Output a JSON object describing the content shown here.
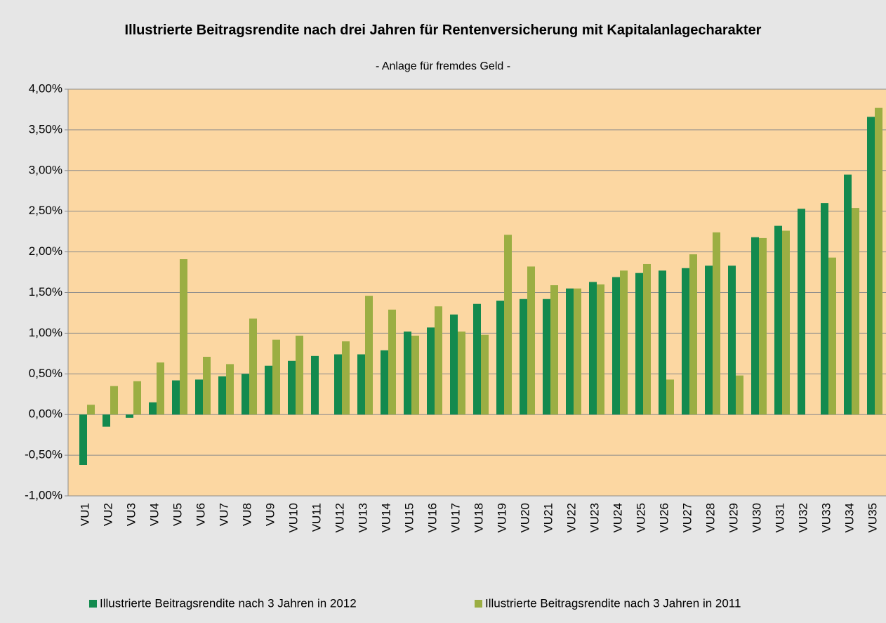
{
  "chart_data": {
    "type": "bar",
    "title": "Illustrierte Beitragsrendite nach drei Jahren für Rentenversicherung mit Kapitalanlagecharakter",
    "subtitle": "- Anlage für fremdes Geld -",
    "categories": [
      "VU1",
      "VU2",
      "VU3",
      "VU4",
      "VU5",
      "VU6",
      "VU7",
      "VU8",
      "VU9",
      "VU10",
      "VU11",
      "VU12",
      "VU13",
      "VU14",
      "VU15",
      "VU16",
      "VU17",
      "VU18",
      "VU19",
      "VU20",
      "VU21",
      "VU22",
      "VU23",
      "VU24",
      "VU25",
      "VU26",
      "VU27",
      "VU28",
      "VU29",
      "VU30",
      "VU31",
      "VU32",
      "VU33",
      "VU34",
      "VU35"
    ],
    "series": [
      {
        "name": "Illustrierte Beitragsrendite nach 3 Jahren in 2012",
        "color": "#138a4e",
        "values": [
          -0.62,
          -0.15,
          -0.04,
          0.15,
          0.42,
          0.43,
          0.47,
          0.5,
          0.6,
          0.66,
          0.72,
          0.74,
          0.74,
          0.79,
          1.02,
          1.07,
          1.23,
          1.36,
          1.4,
          1.42,
          1.42,
          1.55,
          1.63,
          1.69,
          1.74,
          1.77,
          1.8,
          1.83,
          1.83,
          2.18,
          2.32,
          2.53,
          2.6,
          2.95,
          3.66
        ]
      },
      {
        "name": "Illustrierte Beitragsrendite nach 3 Jahren in 2011",
        "color": "#9bae43",
        "values": [
          0.12,
          0.35,
          0.41,
          0.64,
          1.91,
          0.71,
          0.62,
          1.18,
          0.92,
          0.97,
          null,
          0.9,
          1.46,
          1.29,
          0.97,
          1.33,
          1.02,
          0.98,
          2.21,
          1.82,
          1.59,
          1.55,
          1.6,
          1.77,
          1.85,
          0.43,
          1.97,
          2.24,
          0.48,
          2.17,
          2.26,
          null,
          1.93,
          2.54,
          3.77
        ]
      }
    ],
    "ylim": [
      -1,
      4
    ],
    "yticks": [
      {
        "value": -1,
        "label": "-1,00%"
      },
      {
        "value": -0.5,
        "label": "-0,50%"
      },
      {
        "value": 0,
        "label": "0,00%"
      },
      {
        "value": 0.5,
        "label": "0,50%"
      },
      {
        "value": 1,
        "label": "1,00%"
      },
      {
        "value": 1.5,
        "label": "1,50%"
      },
      {
        "value": 2,
        "label": "2,00%"
      },
      {
        "value": 2.5,
        "label": "2,50%"
      },
      {
        "value": 3,
        "label": "3,00%"
      },
      {
        "value": 3.5,
        "label": "3,50%"
      },
      {
        "value": 4,
        "label": "4,00%"
      }
    ],
    "grid": true
  }
}
